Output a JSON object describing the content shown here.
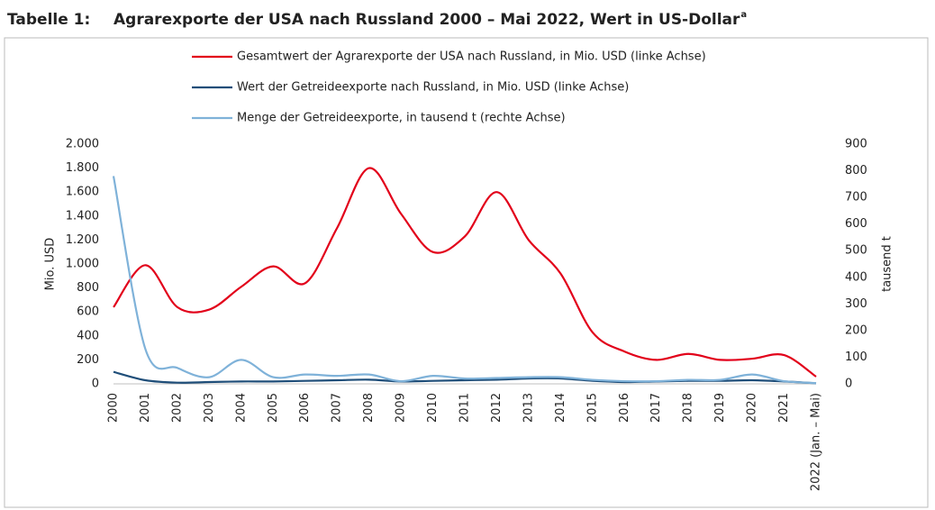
{
  "table_label": "Tabelle 1:",
  "chart_data": {
    "type": "line",
    "title": "Agrarexporte der USA nach Russland 2000 – Mai 2022, Wert in US-Dollar",
    "title_footnote": "a",
    "y_label": "Mio. USD",
    "y2_label": "tausend t",
    "categories": [
      "2000",
      "2001",
      "2002",
      "2003",
      "2004",
      "2005",
      "2006",
      "2007",
      "2008",
      "2009",
      "2010",
      "2011",
      "2012",
      "2013",
      "2014",
      "2015",
      "2016",
      "2017",
      "2018",
      "2019",
      "2020",
      "2021",
      "2022 (Jan. – Mai)"
    ],
    "series": [
      {
        "name": "Gesamtwert der Agrarexporte der USA nach Russland, in Mio. USD (linke Achse)",
        "color": "#e2001a",
        "values": [
          640,
          990,
          640,
          620,
          810,
          980,
          840,
          1300,
          1800,
          1420,
          1100,
          1230,
          1600,
          1200,
          920,
          430,
          270,
          200,
          250,
          200,
          210,
          240,
          60
        ]
      },
      {
        "name": "Wert der Getreideexporte nach Russland, in Mio. USD (linke Achse)",
        "color": "#1f4e79",
        "values": [
          100,
          30,
          10,
          15,
          20,
          20,
          25,
          30,
          35,
          20,
          25,
          30,
          35,
          45,
          45,
          25,
          15,
          20,
          25,
          25,
          30,
          20,
          5
        ]
      },
      {
        "name": "Menge der Getreideexporte, in tausend t (rechte Achse)",
        "color": "#7fb2d9",
        "axis": "y2",
        "values": [
          780,
          130,
          60,
          25,
          90,
          25,
          35,
          30,
          35,
          10,
          30,
          20,
          22,
          25,
          25,
          15,
          10,
          10,
          15,
          15,
          35,
          10,
          3
        ]
      }
    ],
    "ylim": [
      0,
      2000
    ],
    "yticks": [
      0,
      200,
      400,
      600,
      800,
      {
        "value": 1000,
        "label": "1.000"
      },
      {
        "value": 1200,
        "label": "1.200"
      },
      {
        "value": 1400,
        "label": "1.400"
      },
      {
        "value": 1600,
        "label": "1.600"
      },
      {
        "value": 1800,
        "label": "1.800"
      },
      {
        "value": 2000,
        "label": "2.000"
      }
    ],
    "y2lim": [
      0,
      900
    ],
    "y2ticks": [
      0,
      100,
      200,
      300,
      400,
      500,
      600,
      700,
      800,
      900
    ],
    "grid": false,
    "legend": "top"
  }
}
